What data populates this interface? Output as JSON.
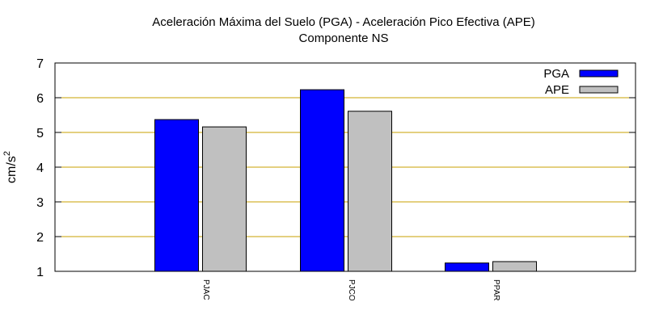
{
  "chart_data": {
    "type": "bar",
    "title": "Aceleración Máxima del Suelo (PGA) -  Aceleración Pico Efectiva (APE)",
    "subtitle": "Componente NS",
    "xlabel": "",
    "ylabel": "cm/s",
    "ylabel_superscript": "2",
    "categories": [
      "PJAC",
      "PJCO",
      "PPAR"
    ],
    "series": [
      {
        "name": "PGA",
        "values": [
          5.37,
          6.23,
          1.24
        ],
        "color": "#0000ff"
      },
      {
        "name": "APE",
        "values": [
          5.16,
          5.61,
          1.28
        ],
        "color": "#c0c0c0"
      }
    ],
    "ylim": [
      1,
      7
    ],
    "yticks": [
      "1",
      "2",
      "3",
      "4",
      "5",
      "6",
      "7"
    ],
    "grid": true,
    "grid_color": "#c8a000",
    "legend_position": "top-right"
  }
}
